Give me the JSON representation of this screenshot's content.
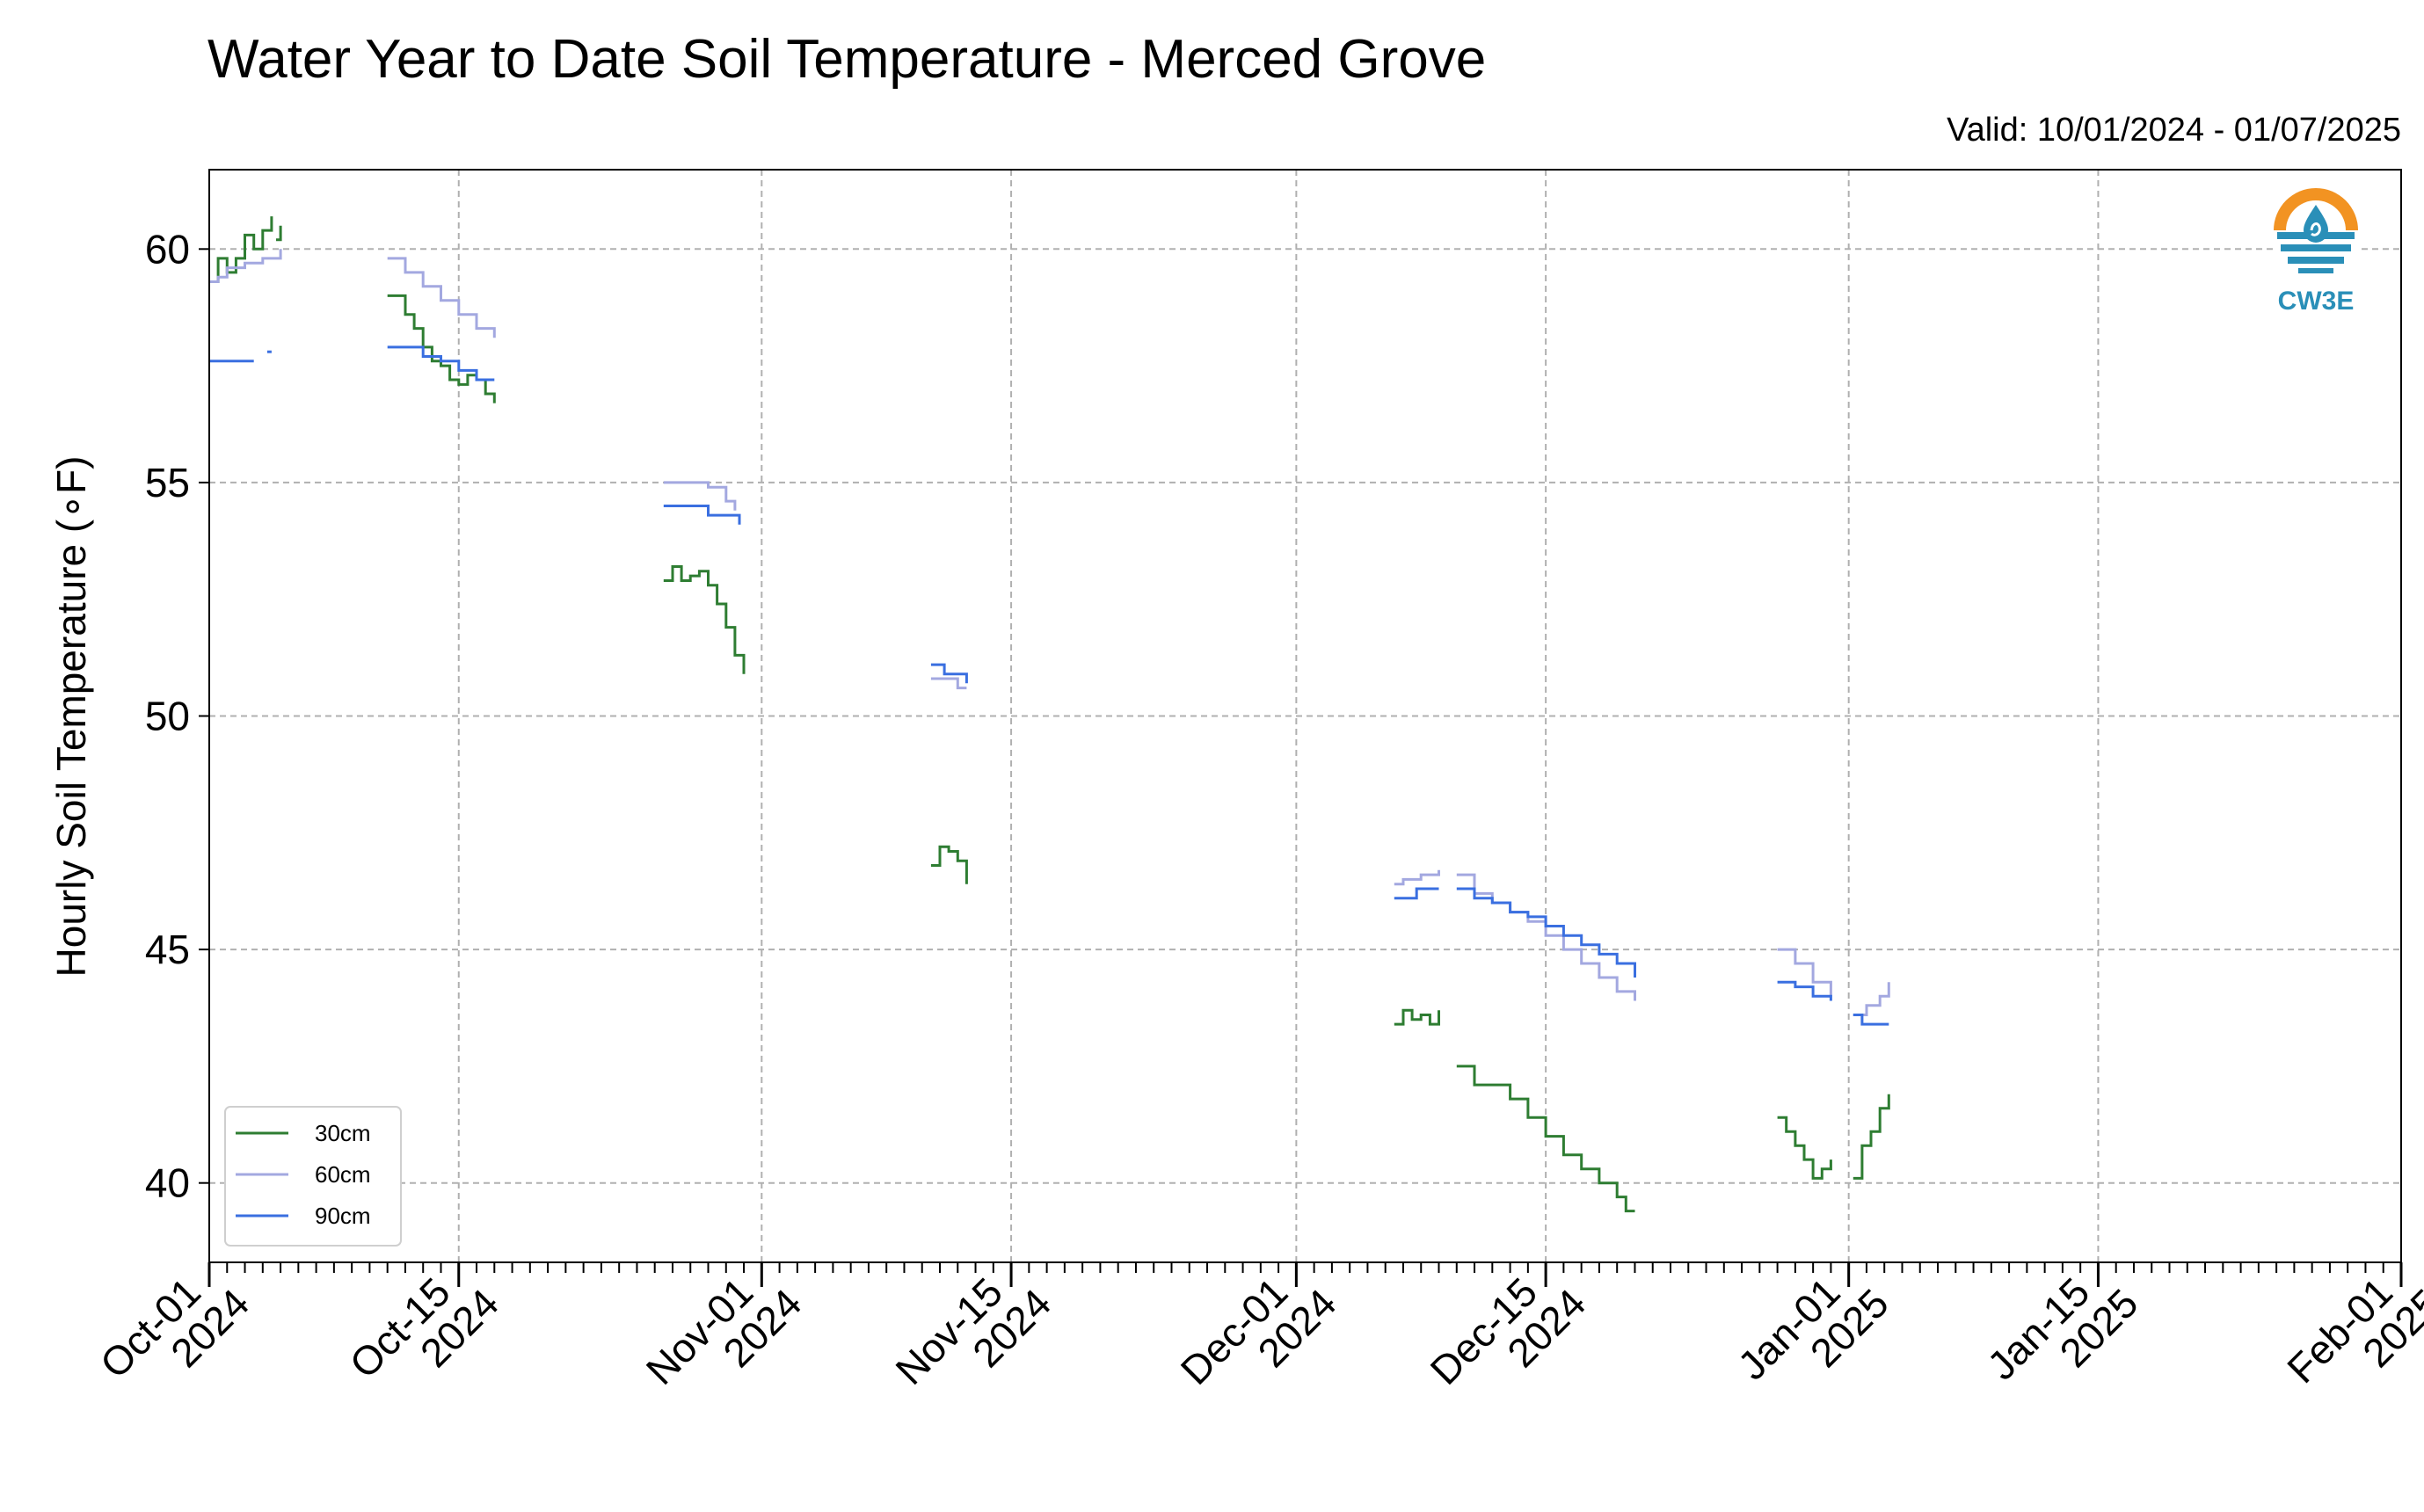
{
  "chart_data": {
    "type": "line",
    "title": "Water Year to Date Soil Temperature - Merced Grove",
    "subtitle": "Valid: 10/01/2024 - 01/07/2025",
    "xlabel": "",
    "ylabel": "Hourly Soil Temperature (∘F)",
    "xlim": [
      "2024-10-01",
      "2025-02-01"
    ],
    "ylim": [
      38.3,
      61.7
    ],
    "yticks": [
      40,
      45,
      50,
      55,
      60
    ],
    "xticks": [
      {
        "date": "2024-10-01",
        "label1": "Oct-01",
        "label2": "2024"
      },
      {
        "date": "2024-10-15",
        "label1": "Oct-15",
        "label2": "2024"
      },
      {
        "date": "2024-11-01",
        "label1": "Nov-01",
        "label2": "2024"
      },
      {
        "date": "2024-11-15",
        "label1": "Nov-15",
        "label2": "2024"
      },
      {
        "date": "2024-12-01",
        "label1": "Dec-01",
        "label2": "2024"
      },
      {
        "date": "2024-12-15",
        "label1": "Dec-15",
        "label2": "2024"
      },
      {
        "date": "2025-01-01",
        "label1": "Jan-01",
        "label2": "2025"
      },
      {
        "date": "2025-01-15",
        "label1": "Jan-15",
        "label2": "2025"
      },
      {
        "date": "2025-02-01",
        "label1": "Feb-01",
        "label2": "2025"
      }
    ],
    "grid": true,
    "legend_position": "lower-left",
    "series": [
      {
        "name": "30cm",
        "color": "#2e7d32",
        "segments": [
          [
            [
              "2024-10-01",
              59.3
            ],
            [
              "2024-10-01 12:00",
              59.8
            ],
            [
              "2024-10-02",
              59.5
            ],
            [
              "2024-10-02 12:00",
              59.8
            ],
            [
              "2024-10-03",
              60.3
            ],
            [
              "2024-10-03 12:00",
              60.0
            ],
            [
              "2024-10-04",
              60.4
            ],
            [
              "2024-10-04 12:00",
              60.7
            ]
          ],
          [
            [
              "2024-10-04 18:00",
              60.2
            ],
            [
              "2024-10-05",
              60.5
            ]
          ],
          [
            [
              "2024-10-11",
              59.0
            ],
            [
              "2024-10-11 12:00",
              59.0
            ],
            [
              "2024-10-12",
              58.6
            ],
            [
              "2024-10-12 12:00",
              58.3
            ],
            [
              "2024-10-13",
              57.9
            ],
            [
              "2024-10-13 12:00",
              57.6
            ],
            [
              "2024-10-14",
              57.5
            ],
            [
              "2024-10-14 12:00",
              57.2
            ],
            [
              "2024-10-15",
              57.1
            ],
            [
              "2024-10-15 12:00",
              57.3
            ],
            [
              "2024-10-16",
              57.2
            ],
            [
              "2024-10-16 12:00",
              56.9
            ],
            [
              "2024-10-17",
              56.7
            ]
          ],
          [
            [
              "2024-10-26 12:00",
              52.9
            ],
            [
              "2024-10-27",
              53.2
            ],
            [
              "2024-10-27 12:00",
              52.9
            ],
            [
              "2024-10-28",
              53.0
            ],
            [
              "2024-10-28 12:00",
              53.1
            ],
            [
              "2024-10-29",
              52.8
            ],
            [
              "2024-10-29 12:00",
              52.4
            ],
            [
              "2024-10-30",
              51.9
            ],
            [
              "2024-10-30 12:00",
              51.3
            ],
            [
              "2024-10-31",
              50.9
            ]
          ],
          [
            [
              "2024-11-10 12:00",
              46.8
            ],
            [
              "2024-11-11",
              47.2
            ],
            [
              "2024-11-11 12:00",
              47.1
            ],
            [
              "2024-11-12",
              46.9
            ],
            [
              "2024-11-12 12:00",
              46.4
            ]
          ],
          [
            [
              "2024-12-06 12:00",
              43.4
            ],
            [
              "2024-12-07",
              43.7
            ],
            [
              "2024-12-07 12:00",
              43.5
            ],
            [
              "2024-12-08",
              43.6
            ],
            [
              "2024-12-08 12:00",
              43.4
            ],
            [
              "2024-12-09",
              43.7
            ]
          ],
          [
            [
              "2024-12-10",
              42.5
            ],
            [
              "2024-12-11",
              42.1
            ],
            [
              "2024-12-12",
              42.1
            ],
            [
              "2024-12-13",
              41.8
            ],
            [
              "2024-12-14",
              41.4
            ],
            [
              "2024-12-15",
              41.0
            ],
            [
              "2024-12-16",
              40.6
            ],
            [
              "2024-12-17",
              40.3
            ],
            [
              "2024-12-18",
              40.0
            ],
            [
              "2024-12-19",
              39.7
            ],
            [
              "2024-12-19 12:00",
              39.4
            ],
            [
              "2024-12-20",
              39.4
            ]
          ],
          [
            [
              "2024-12-28",
              41.4
            ],
            [
              "2024-12-28 12:00",
              41.1
            ],
            [
              "2024-12-29",
              40.8
            ],
            [
              "2024-12-29 12:00",
              40.5
            ],
            [
              "2024-12-30",
              40.1
            ],
            [
              "2024-12-30 12:00",
              40.3
            ],
            [
              "2024-12-31",
              40.5
            ]
          ],
          [
            [
              "2025-01-01 06:00",
              40.1
            ],
            [
              "2025-01-01 18:00",
              40.8
            ],
            [
              "2025-01-02 06:00",
              41.1
            ],
            [
              "2025-01-02 18:00",
              41.6
            ],
            [
              "2025-01-03 06:00",
              41.9
            ]
          ]
        ]
      },
      {
        "name": "60cm",
        "color": "#a3a8e0",
        "segments": [
          [
            [
              "2024-10-01",
              59.3
            ],
            [
              "2024-10-01 12:00",
              59.4
            ],
            [
              "2024-10-02",
              59.6
            ],
            [
              "2024-10-03",
              59.7
            ],
            [
              "2024-10-04",
              59.8
            ],
            [
              "2024-10-05",
              60.0
            ]
          ],
          [
            [
              "2024-10-11",
              59.8
            ],
            [
              "2024-10-12",
              59.5
            ],
            [
              "2024-10-13",
              59.2
            ],
            [
              "2024-10-14",
              58.9
            ],
            [
              "2024-10-15",
              58.6
            ],
            [
              "2024-10-16",
              58.3
            ],
            [
              "2024-10-17",
              58.1
            ]
          ],
          [
            [
              "2024-10-26 12:00",
              55.0
            ],
            [
              "2024-10-27",
              55.0
            ],
            [
              "2024-10-28",
              55.0
            ],
            [
              "2024-10-29",
              54.9
            ],
            [
              "2024-10-30",
              54.6
            ],
            [
              "2024-10-30 12:00",
              54.4
            ]
          ],
          [
            [
              "2024-11-10 12:00",
              50.8
            ],
            [
              "2024-11-11",
              50.8
            ],
            [
              "2024-11-12",
              50.6
            ],
            [
              "2024-11-12 12:00",
              50.6
            ]
          ],
          [
            [
              "2024-12-06 12:00",
              46.4
            ],
            [
              "2024-12-07",
              46.5
            ],
            [
              "2024-12-08",
              46.6
            ],
            [
              "2024-12-09",
              46.7
            ]
          ],
          [
            [
              "2024-12-10",
              46.6
            ],
            [
              "2024-12-11",
              46.2
            ],
            [
              "2024-12-12",
              46.0
            ],
            [
              "2024-12-13",
              45.8
            ],
            [
              "2024-12-14",
              45.6
            ],
            [
              "2024-12-15",
              45.3
            ],
            [
              "2024-12-16",
              45.0
            ],
            [
              "2024-12-17",
              44.7
            ],
            [
              "2024-12-18",
              44.4
            ],
            [
              "2024-12-19",
              44.1
            ],
            [
              "2024-12-20",
              43.9
            ]
          ],
          [
            [
              "2024-12-28",
              45.0
            ],
            [
              "2024-12-29",
              44.7
            ],
            [
              "2024-12-30",
              44.3
            ],
            [
              "2024-12-31",
              44.0
            ]
          ],
          [
            [
              "2025-01-01 06:00",
              43.6
            ],
            [
              "2025-01-02",
              43.8
            ],
            [
              "2025-01-02 18:00",
              44.0
            ],
            [
              "2025-01-03 06:00",
              44.3
            ]
          ]
        ]
      },
      {
        "name": "90cm",
        "color": "#3a6fe0",
        "segments": [
          [
            [
              "2024-10-01",
              57.6
            ],
            [
              "2024-10-03 12:00",
              57.6
            ]
          ],
          [
            [
              "2024-10-04 06:00",
              57.8
            ],
            [
              "2024-10-04 12:00",
              57.8
            ]
          ],
          [
            [
              "2024-10-11",
              57.9
            ],
            [
              "2024-10-12 12:00",
              57.9
            ],
            [
              "2024-10-13",
              57.7
            ],
            [
              "2024-10-14",
              57.6
            ],
            [
              "2024-10-15",
              57.4
            ],
            [
              "2024-10-16",
              57.2
            ],
            [
              "2024-10-17",
              57.2
            ]
          ],
          [
            [
              "2024-10-26 12:00",
              54.5
            ],
            [
              "2024-10-28 12:00",
              54.5
            ],
            [
              "2024-10-29",
              54.3
            ],
            [
              "2024-10-30 12:00",
              54.3
            ],
            [
              "2024-10-30 18:00",
              54.1
            ]
          ],
          [
            [
              "2024-11-10 12:00",
              51.1
            ],
            [
              "2024-11-11",
              51.1
            ],
            [
              "2024-11-11 06:00",
              50.9
            ],
            [
              "2024-11-12",
              50.9
            ],
            [
              "2024-11-12 12:00",
              50.7
            ]
          ],
          [
            [
              "2024-12-06 12:00",
              46.1
            ],
            [
              "2024-12-07 12:00",
              46.1
            ],
            [
              "2024-12-07 18:00",
              46.3
            ],
            [
              "2024-12-09",
              46.3
            ]
          ],
          [
            [
              "2024-12-10",
              46.3
            ],
            [
              "2024-12-11",
              46.1
            ],
            [
              "2024-12-12",
              46.0
            ],
            [
              "2024-12-13",
              45.8
            ],
            [
              "2024-12-14",
              45.7
            ],
            [
              "2024-12-15",
              45.5
            ],
            [
              "2024-12-16",
              45.3
            ],
            [
              "2024-12-17",
              45.1
            ],
            [
              "2024-12-18",
              44.9
            ],
            [
              "2024-12-19",
              44.7
            ],
            [
              "2024-12-20",
              44.4
            ]
          ],
          [
            [
              "2024-12-28",
              44.3
            ],
            [
              "2024-12-29",
              44.2
            ],
            [
              "2024-12-30",
              44.0
            ],
            [
              "2024-12-31",
              43.9
            ]
          ],
          [
            [
              "2025-01-01 06:00",
              43.6
            ],
            [
              "2025-01-01 18:00",
              43.4
            ],
            [
              "2025-01-03 06:00",
              43.4
            ]
          ]
        ]
      }
    ]
  },
  "logo": {
    "text": "CW3E",
    "icon": "cw3e-logo-icon",
    "colors": {
      "orange": "#f29322",
      "blue": "#2a8fb8",
      "dark_blue": "#1f6f96"
    }
  }
}
